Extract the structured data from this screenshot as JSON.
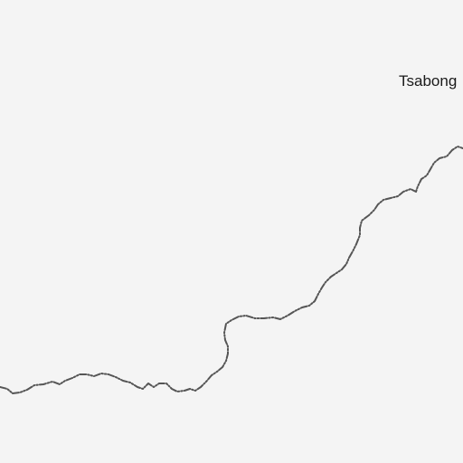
{
  "map": {
    "places": [
      {
        "label": "Tsabong"
      }
    ],
    "features": [
      {
        "type": "international-border"
      }
    ],
    "colors": {
      "background": "#f4f4f4",
      "border": "#555555",
      "label": "#1a1a1a"
    }
  }
}
